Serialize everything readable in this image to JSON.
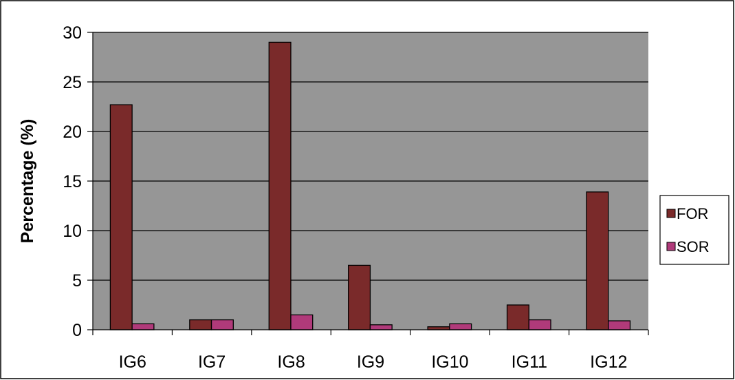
{
  "chart_data": {
    "type": "bar",
    "title": "",
    "xlabel": "",
    "ylabel": "Percentage (%)",
    "ylim": [
      0,
      30
    ],
    "yticks": [
      0,
      5,
      10,
      15,
      20,
      25,
      30
    ],
    "grid": true,
    "legend_position": "right",
    "background_color": "#969696",
    "categories": [
      "IG6",
      "IG7",
      "IG8",
      "IG9",
      "IG10",
      "IG11",
      "IG12"
    ],
    "series": [
      {
        "name": "FOR",
        "color": "#7a2a2a",
        "values": [
          22.7,
          1.0,
          29.0,
          6.5,
          0.3,
          2.5,
          13.9
        ]
      },
      {
        "name": "SOR",
        "color": "#b03a7a",
        "values": [
          0.6,
          1.0,
          1.5,
          0.5,
          0.6,
          1.0,
          0.9
        ]
      }
    ]
  }
}
